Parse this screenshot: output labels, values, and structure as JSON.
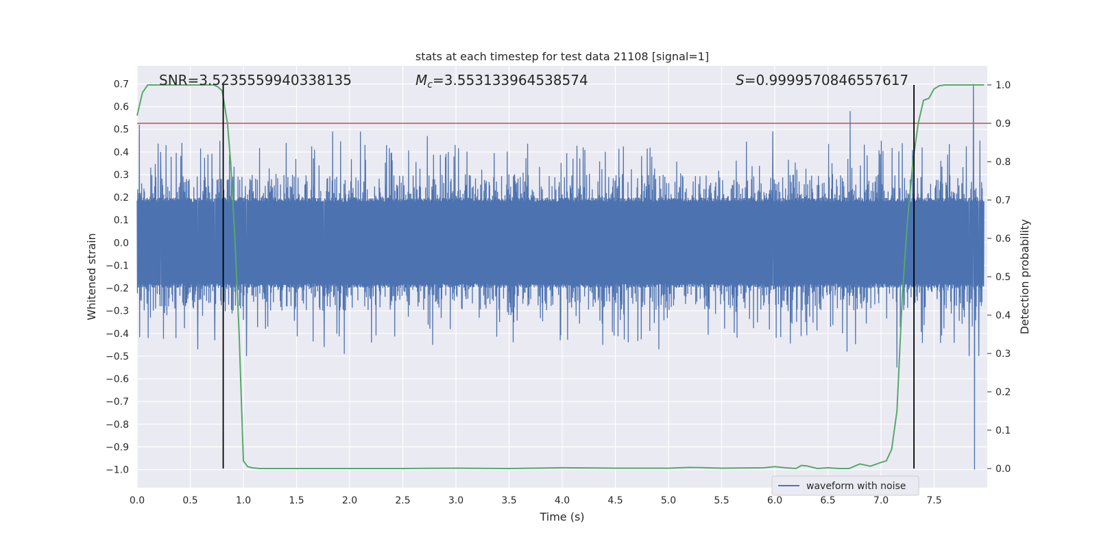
{
  "chart_data": {
    "type": "line",
    "title": "stats at each timestep for test data 21108 [signal=1]",
    "xlabel": "Time (s)",
    "ylabel": "Whitened strain",
    "y2label": "Detection probability",
    "xlim": [
      0.0,
      8.0
    ],
    "ylim": [
      -1.08,
      0.78
    ],
    "y2lim": [
      -0.05,
      1.05
    ],
    "x_ticks": [
      "0.0",
      "0.5",
      "1.0",
      "1.5",
      "2.0",
      "2.5",
      "3.0",
      "3.5",
      "4.0",
      "4.5",
      "5.0",
      "5.5",
      "6.0",
      "6.5",
      "7.0",
      "7.5"
    ],
    "y_ticks": [
      "0.7",
      "0.6",
      "0.5",
      "0.4",
      "0.3",
      "0.2",
      "0.1",
      "0.0",
      "−0.1",
      "−0.2",
      "−0.3",
      "−0.4",
      "−0.5",
      "−0.6",
      "−0.7",
      "−0.8",
      "−0.9",
      "−1.0"
    ],
    "y2_ticks": [
      "1.0",
      "0.9",
      "0.8",
      "0.7",
      "0.6",
      "0.5",
      "0.4",
      "0.3",
      "0.2",
      "0.1",
      "0.0"
    ],
    "grid": true,
    "annotations": {
      "snr": "SNR=3.5235559940338135",
      "mc": "M",
      "mc_sub": "c",
      "mc_value": "=3.553133964538574",
      "s": "S",
      "s_value": "=0.9999570846557617"
    },
    "threshold": {
      "axis": "y2",
      "value": 0.9,
      "color": "#c44e52"
    },
    "vlines": [
      0.81,
      7.31
    ],
    "series": [
      {
        "name": "waveform with noise",
        "axis": "y",
        "color": "#4c72b0",
        "noise_envelope": {
          "core": 0.18,
          "typical_peak": 0.3,
          "max_peak": 0.5
        },
        "spikes": [
          {
            "x": 0.02,
            "y": 0.52
          },
          {
            "x": 0.22,
            "y": 0.4
          },
          {
            "x": 0.42,
            "y": 0.44
          },
          {
            "x": 0.57,
            "y": -0.47
          },
          {
            "x": 0.73,
            "y": -0.43
          },
          {
            "x": 1.03,
            "y": -0.5
          },
          {
            "x": 1.67,
            "y": 0.41
          },
          {
            "x": 1.84,
            "y": 0.49
          },
          {
            "x": 1.76,
            "y": -0.46
          },
          {
            "x": 1.95,
            "y": -0.49
          },
          {
            "x": 2.1,
            "y": 0.49
          },
          {
            "x": 2.78,
            "y": -0.45
          },
          {
            "x": 2.73,
            "y": 0.47
          },
          {
            "x": 3.98,
            "y": -0.43
          },
          {
            "x": 4.38,
            "y": -0.45
          },
          {
            "x": 4.91,
            "y": -0.47
          },
          {
            "x": 5.98,
            "y": 0.49
          },
          {
            "x": 6.71,
            "y": 0.58
          },
          {
            "x": 6.68,
            "y": -0.48
          },
          {
            "x": 7.15,
            "y": -0.55
          },
          {
            "x": 7.83,
            "y": -0.5
          },
          {
            "x": 7.87,
            "y": 0.7
          },
          {
            "x": 7.88,
            "y": -1.0
          },
          {
            "x": 7.92,
            "y": -0.5
          },
          {
            "x": 7.93,
            "y": 0.45
          }
        ]
      },
      {
        "name": "detection probability",
        "axis": "y2",
        "color": "#55a868",
        "x": [
          0.0,
          0.05,
          0.1,
          0.2,
          0.4,
          0.6,
          0.72,
          0.76,
          0.8,
          0.85,
          0.88,
          0.92,
          0.96,
          1.0,
          1.04,
          1.08,
          1.15,
          1.5,
          2.0,
          2.5,
          3.0,
          3.5,
          4.0,
          4.5,
          5.0,
          5.2,
          5.5,
          5.9,
          6.0,
          6.1,
          6.2,
          6.25,
          6.3,
          6.4,
          6.5,
          6.6,
          6.7,
          6.8,
          6.9,
          7.0,
          7.05,
          7.1,
          7.15,
          7.2,
          7.25,
          7.3,
          7.35,
          7.4,
          7.45,
          7.5,
          7.55,
          7.6,
          7.7,
          7.8,
          7.9,
          7.97
        ],
        "values": [
          0.92,
          0.98,
          1.0,
          1.0,
          1.0,
          1.0,
          1.0,
          0.995,
          0.985,
          0.9,
          0.8,
          0.6,
          0.35,
          0.02,
          0.005,
          0.002,
          0.0,
          0.0,
          0.0,
          0.0,
          0.001,
          0.0,
          0.002,
          0.001,
          0.001,
          0.003,
          0.001,
          0.002,
          0.005,
          0.002,
          0.0,
          0.008,
          0.007,
          0.0,
          0.002,
          0.0,
          0.0,
          0.012,
          0.006,
          0.016,
          0.02,
          0.05,
          0.15,
          0.45,
          0.65,
          0.8,
          0.9,
          0.96,
          0.965,
          0.99,
          0.998,
          1.0,
          1.0,
          1.0,
          1.0,
          1.0
        ]
      }
    ],
    "legend": {
      "entries": [
        "waveform with noise"
      ],
      "placement": "bottom-right"
    }
  }
}
